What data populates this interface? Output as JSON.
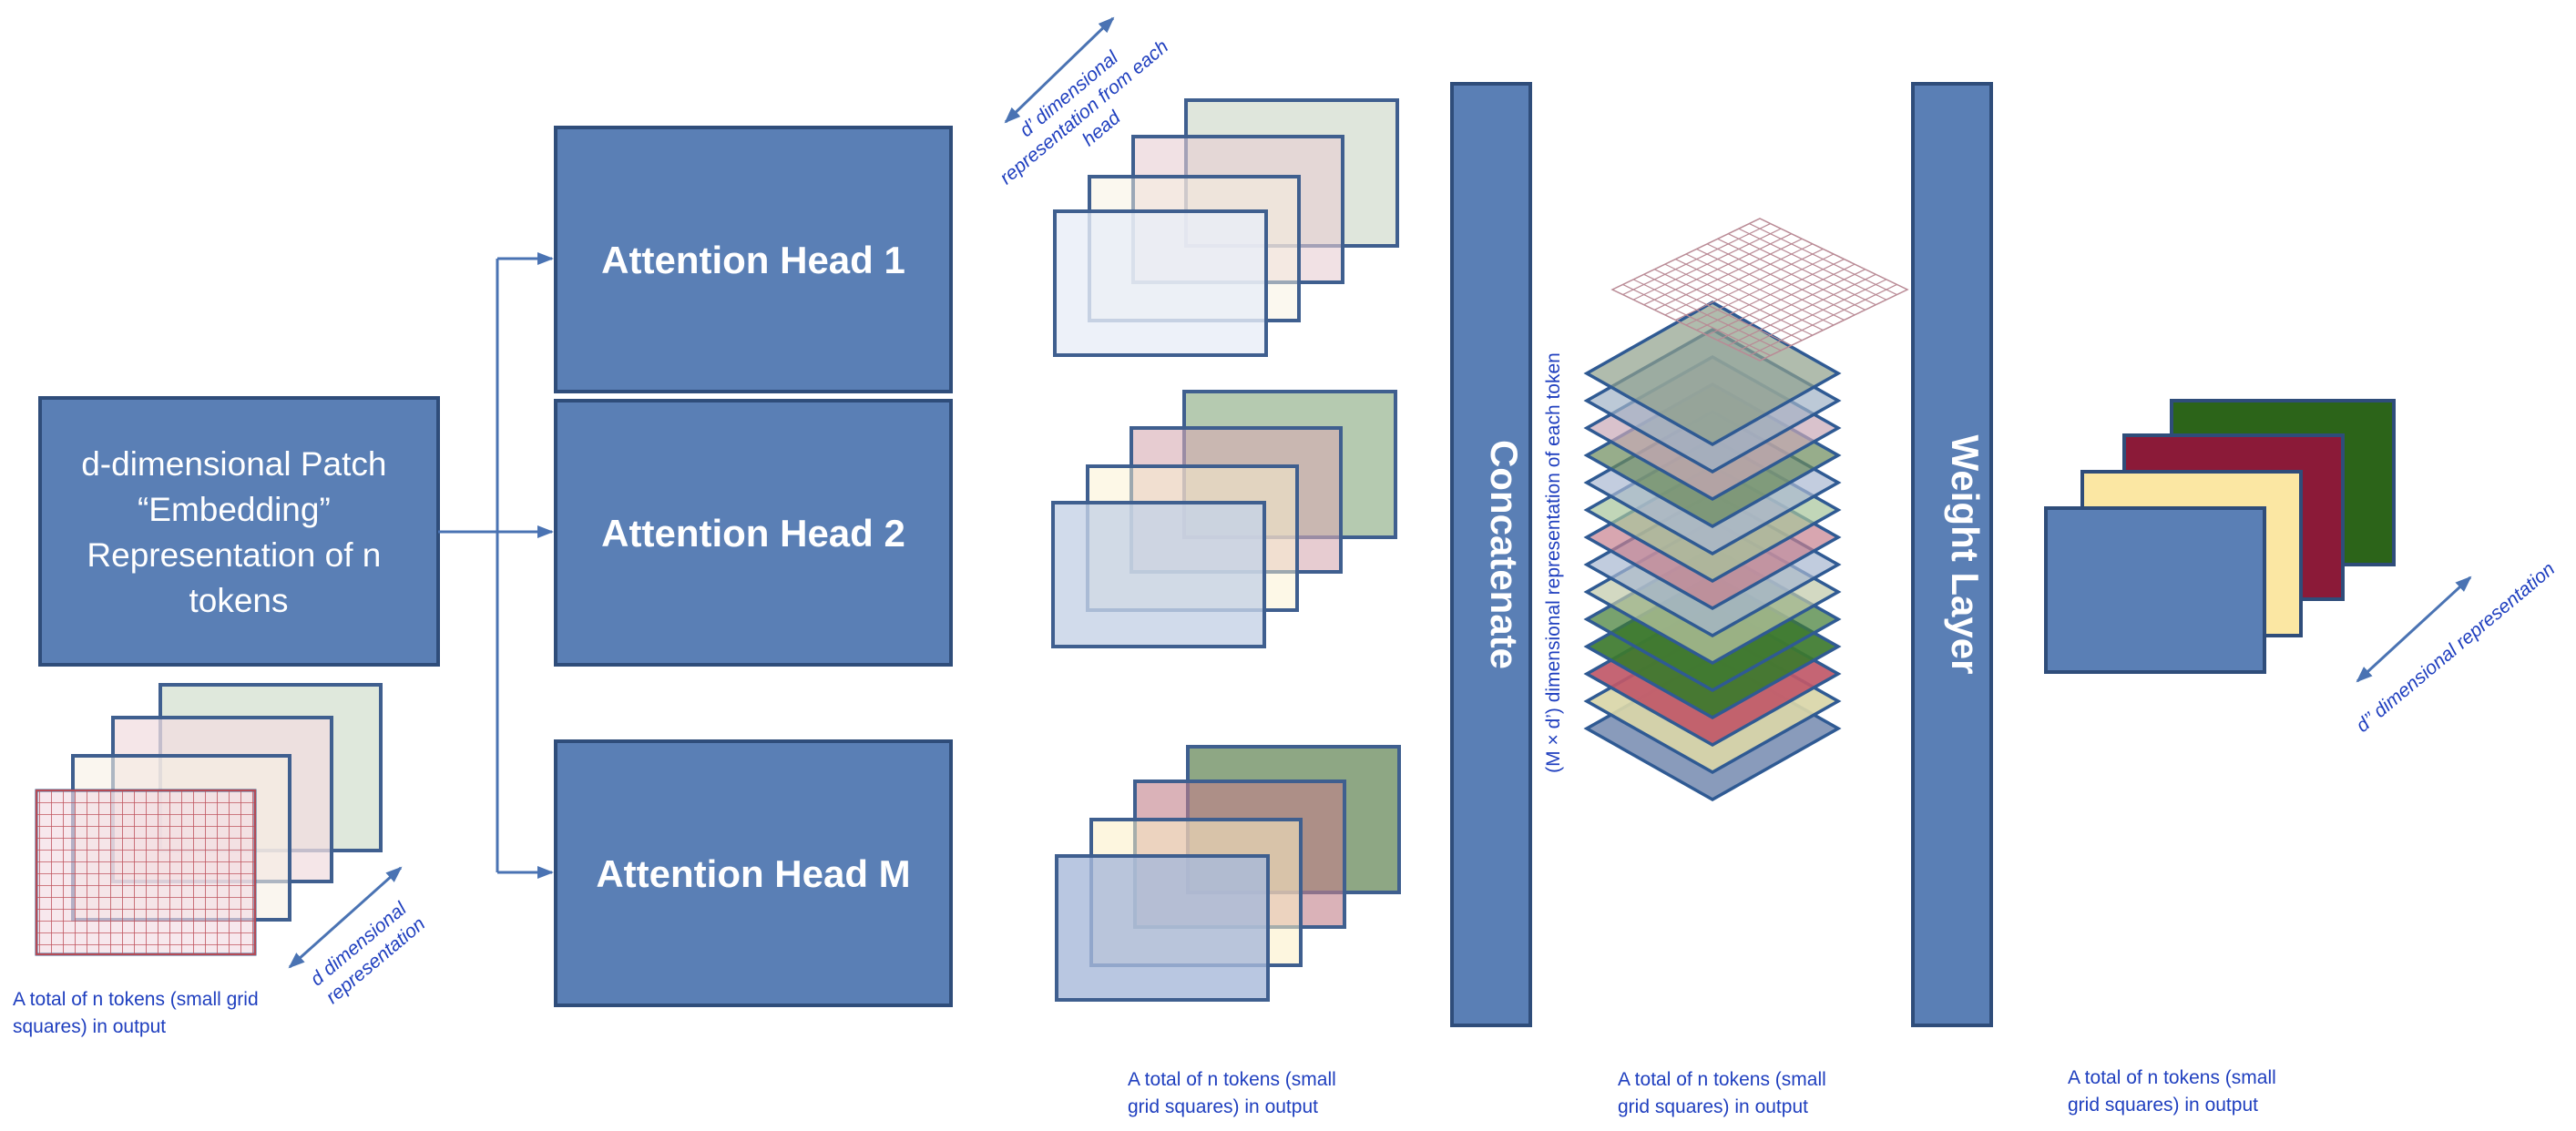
{
  "embedding_box": {
    "lines": [
      "d-dimensional Patch",
      "“Embedding”",
      "Representation of n",
      "tokens"
    ]
  },
  "heads": [
    {
      "label": "Attention Head 1"
    },
    {
      "label": "Attention Head 2"
    },
    {
      "label": "Attention Head M"
    }
  ],
  "concatenate_label": "Concatenate",
  "weight_layer_label": "Weight Layer",
  "annotations": {
    "d_dim": [
      "d dimensional",
      "representation"
    ],
    "d_prime": [
      "d’ dimensional",
      "representation from each",
      "head"
    ],
    "concat_dim": "(M × d’) dimensional representation of each token",
    "d_double_prime": "d’’ dimensional representation"
  },
  "captions": {
    "input": [
      "A total of n tokens (small grid",
      "squares) in output"
    ],
    "heads": [
      "A total of n tokens (small",
      "grid squares) in output"
    ],
    "concat": [
      "A total of n tokens (small",
      "grid squares) in output"
    ],
    "output": [
      "A total of n tokens (small",
      "grid squares) in output"
    ]
  },
  "colors": {
    "box_fill": "#5a7fb5",
    "box_stroke": "#2f4d7a",
    "arrow": "#4a73b3",
    "caption": "#1f3fbf",
    "output_blue": "#5a7fb5",
    "output_yellow": "#fbe7a3",
    "output_maroon": "#8b1a38",
    "output_green": "#2c6419"
  }
}
